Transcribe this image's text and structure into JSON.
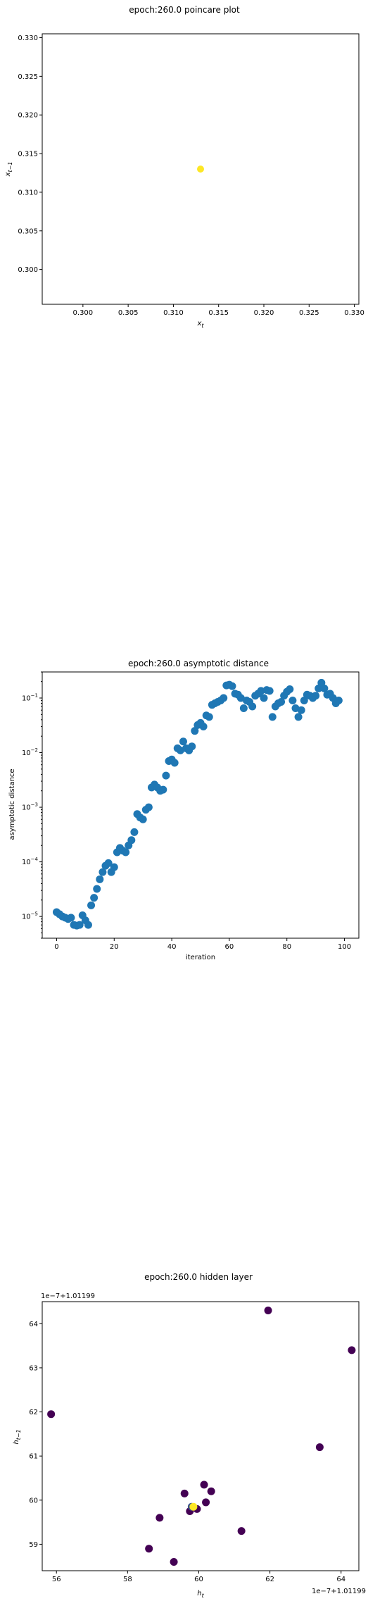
{
  "chart_data": [
    {
      "type": "scatter",
      "title": "epoch:260.0 poincare plot",
      "xlabel": "x_t",
      "ylabel": "x_{t-1}",
      "xlim": [
        0.2955,
        0.3305
      ],
      "ylim": [
        0.2955,
        0.3305
      ],
      "xticks": [
        "0.300",
        "0.305",
        "0.310",
        "0.315",
        "0.320",
        "0.325",
        "0.330"
      ],
      "yticks": [
        "0.300",
        "0.305",
        "0.310",
        "0.315",
        "0.320",
        "0.325",
        "0.330"
      ],
      "tick_values": [
        0.3,
        0.305,
        0.31,
        0.315,
        0.32,
        0.325,
        0.33
      ],
      "points": [
        {
          "x": 0.313,
          "y": 0.313
        }
      ],
      "colors": {
        "point": "#fde725"
      }
    },
    {
      "type": "scatter",
      "title": "epoch:260.0 asymptotic distance",
      "xlabel": "iteration",
      "ylabel": "asymptotic distance",
      "yscale": "log",
      "xlim": [
        -5,
        105
      ],
      "ylim": [
        4e-06,
        0.3
      ],
      "xticks": [
        "0",
        "20",
        "40",
        "60",
        "80",
        "100"
      ],
      "xtick_values": [
        0,
        20,
        40,
        60,
        80,
        100
      ],
      "yticks": [
        "10^-5",
        "10^-4",
        "10^-3",
        "10^-2",
        "10^-1"
      ],
      "ytick_exponents": [
        -5,
        -4,
        -3,
        -2,
        -1
      ],
      "x": [
        0,
        1,
        2,
        3,
        4,
        5,
        6,
        7,
        8,
        9,
        10,
        11,
        12,
        13,
        14,
        15,
        16,
        17,
        18,
        19,
        20,
        21,
        22,
        23,
        24,
        25,
        26,
        27,
        28,
        29,
        30,
        31,
        32,
        33,
        34,
        35,
        36,
        37,
        38,
        39,
        40,
        41,
        42,
        43,
        44,
        45,
        46,
        47,
        48,
        49,
        50,
        51,
        52,
        53,
        54,
        55,
        56,
        57,
        58,
        59,
        60,
        61,
        62,
        63,
        64,
        65,
        66,
        67,
        68,
        69,
        70,
        71,
        72,
        73,
        74,
        75,
        76,
        77,
        78,
        79,
        80,
        81,
        82,
        83,
        84,
        85,
        86,
        87,
        88,
        89,
        90,
        91,
        92,
        93,
        94,
        95,
        96,
        97,
        98,
        99,
        100
      ],
      "y": [
        1.2e-05,
        1.1e-05,
        1e-05,
        9.5e-06,
        9e-06,
        9.5e-06,
        7e-06,
        6.8e-06,
        7e-06,
        1.05e-05,
        8.5e-06,
        7e-06,
        1.6e-05,
        2.2e-05,
        3.2e-05,
        4.8e-05,
        6.5e-05,
        8.5e-05,
        9.5e-05,
        6.5e-05,
        8e-05,
        0.00015,
        0.00018,
        0.00016,
        0.00015,
        0.0002,
        0.00025,
        0.00035,
        0.00075,
        0.00065,
        0.0006,
        0.0009,
        0.001,
        0.0023,
        0.0026,
        0.0023,
        0.002,
        0.0021,
        0.0038,
        0.007,
        0.0075,
        0.0065,
        0.012,
        0.011,
        0.016,
        0.012,
        0.011,
        0.013,
        0.025,
        0.032,
        0.035,
        0.03,
        0.048,
        0.045,
        0.075,
        0.08,
        0.085,
        0.09,
        0.1,
        0.17,
        0.175,
        0.165,
        0.12,
        0.115,
        0.1,
        0.065,
        0.09,
        0.085,
        0.07,
        0.11,
        0.12,
        0.135,
        0.1,
        0.14,
        0.135,
        0.045,
        0.07,
        0.08,
        0.085,
        0.11,
        0.13,
        0.145,
        0.09,
        0.065,
        0.045,
        0.06,
        0.09,
        0.115,
        0.11,
        0.1,
        0.11,
        0.15,
        0.19,
        0.15,
        0.115,
        0.12,
        0.1,
        0.08,
        0.09,
        null,
        null
      ],
      "colors": {
        "point": "#1f77b4"
      }
    },
    {
      "type": "scatter",
      "title": "epoch:260.0 hidden layer",
      "xlabel": "h_t",
      "ylabel": "h_{t-1}",
      "offset_text_x": "1e−7+1.01199",
      "offset_text_y": "1e−7+1.01199",
      "xlim": [
        55.6,
        64.5
      ],
      "ylim": [
        58.4,
        64.5
      ],
      "xticks": [
        "56",
        "58",
        "60",
        "62",
        "64"
      ],
      "xtick_values": [
        56,
        58,
        60,
        62,
        64
      ],
      "yticks": [
        "59",
        "60",
        "61",
        "62",
        "63",
        "64"
      ],
      "ytick_values": [
        59,
        60,
        61,
        62,
        63,
        64
      ],
      "points": [
        {
          "x": 55.85,
          "y": 61.95,
          "c": "#440154"
        },
        {
          "x": 61.95,
          "y": 64.3,
          "c": "#440154"
        },
        {
          "x": 64.3,
          "y": 63.4,
          "c": "#440154"
        },
        {
          "x": 63.4,
          "y": 61.2,
          "c": "#440154"
        },
        {
          "x": 58.6,
          "y": 58.9,
          "c": "#440154"
        },
        {
          "x": 58.9,
          "y": 59.6,
          "c": "#440154"
        },
        {
          "x": 59.3,
          "y": 58.6,
          "c": "#440154"
        },
        {
          "x": 61.2,
          "y": 59.3,
          "c": "#440154"
        },
        {
          "x": 59.6,
          "y": 60.15,
          "c": "#440154"
        },
        {
          "x": 60.15,
          "y": 60.35,
          "c": "#440154"
        },
        {
          "x": 60.35,
          "y": 60.2,
          "c": "#440154"
        },
        {
          "x": 60.2,
          "y": 59.95,
          "c": "#440154"
        },
        {
          "x": 59.75,
          "y": 59.75,
          "c": "#440154"
        },
        {
          "x": 59.95,
          "y": 59.8,
          "c": "#440154"
        },
        {
          "x": 59.8,
          "y": 59.85,
          "c": "#3b528b"
        },
        {
          "x": 59.85,
          "y": 59.85,
          "c": "#fde725"
        }
      ]
    }
  ]
}
